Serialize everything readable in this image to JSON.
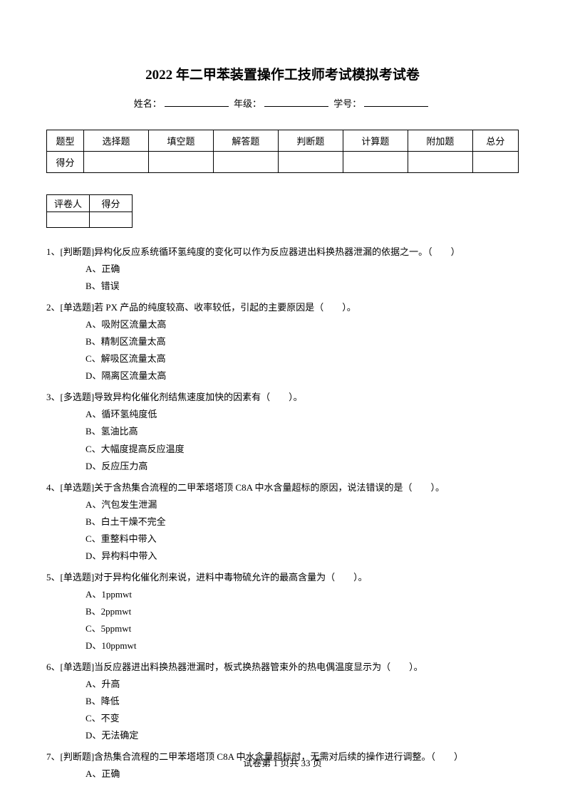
{
  "title": "2022 年二甲苯装置操作工技师考试模拟考试卷",
  "info": {
    "name_label": "姓名：",
    "grade_label": "年级：",
    "id_label": "学号："
  },
  "score_table": {
    "headers": [
      "题型",
      "选择题",
      "填空题",
      "解答题",
      "判断题",
      "计算题",
      "附加题",
      "总分"
    ],
    "row2_label": "得分"
  },
  "grader_table": {
    "col1": "评卷人",
    "col2": "得分"
  },
  "questions": [
    {
      "num": "1、",
      "text": "[判断题]异构化反应系统循环氢纯度的变化可以作为反应器进出料换热器泄漏的依据之一。（　　）",
      "opts": [
        "A、正确",
        "B、错误"
      ]
    },
    {
      "num": "2、",
      "text": "[单选题]若 PX 产品的纯度较高、收率较低，引起的主要原因是（　　）。",
      "opts": [
        "A、吸附区流量太高",
        "B、精制区流量太高",
        "C、解吸区流量太高",
        "D、隔离区流量太高"
      ]
    },
    {
      "num": "3、",
      "text": "[多选题]导致异构化催化剂结焦速度加快的因素有（　　）。",
      "opts": [
        "A、循环氢纯度低",
        "B、氢油比高",
        "C、大幅度提高反应温度",
        "D、反应压力高"
      ]
    },
    {
      "num": "4、",
      "text": "[单选题]关于含热集合流程的二甲苯塔塔顶 C8A 中水含量超标的原因，说法错误的是（　　）。",
      "opts": [
        "A、汽包发生泄漏",
        "B、白土干燥不完全",
        "C、重整料中带入",
        "D、异构料中带入"
      ]
    },
    {
      "num": "5、",
      "text": "[单选题]对于异构化催化剂来说，进料中毒物硫允许的最高含量为（　　）。",
      "opts": [
        "A、1ppmwt",
        "B、2ppmwt",
        "C、5ppmwt",
        "D、10ppmwt"
      ]
    },
    {
      "num": "6、",
      "text": "[单选题]当反应器进出料换热器泄漏时，板式换热器管束外的热电偶温度显示为（　　）。",
      "opts": [
        "A、升高",
        "B、降低",
        "C、不变",
        "D、无法确定"
      ]
    },
    {
      "num": "7、",
      "text": "[判断题]含热集合流程的二甲苯塔塔顶 C8A 中水含量超标时，无需对后续的操作进行调整。（　　）",
      "opts": [
        "A、正确"
      ]
    }
  ],
  "footer": "试卷第 1 页共 33 页"
}
